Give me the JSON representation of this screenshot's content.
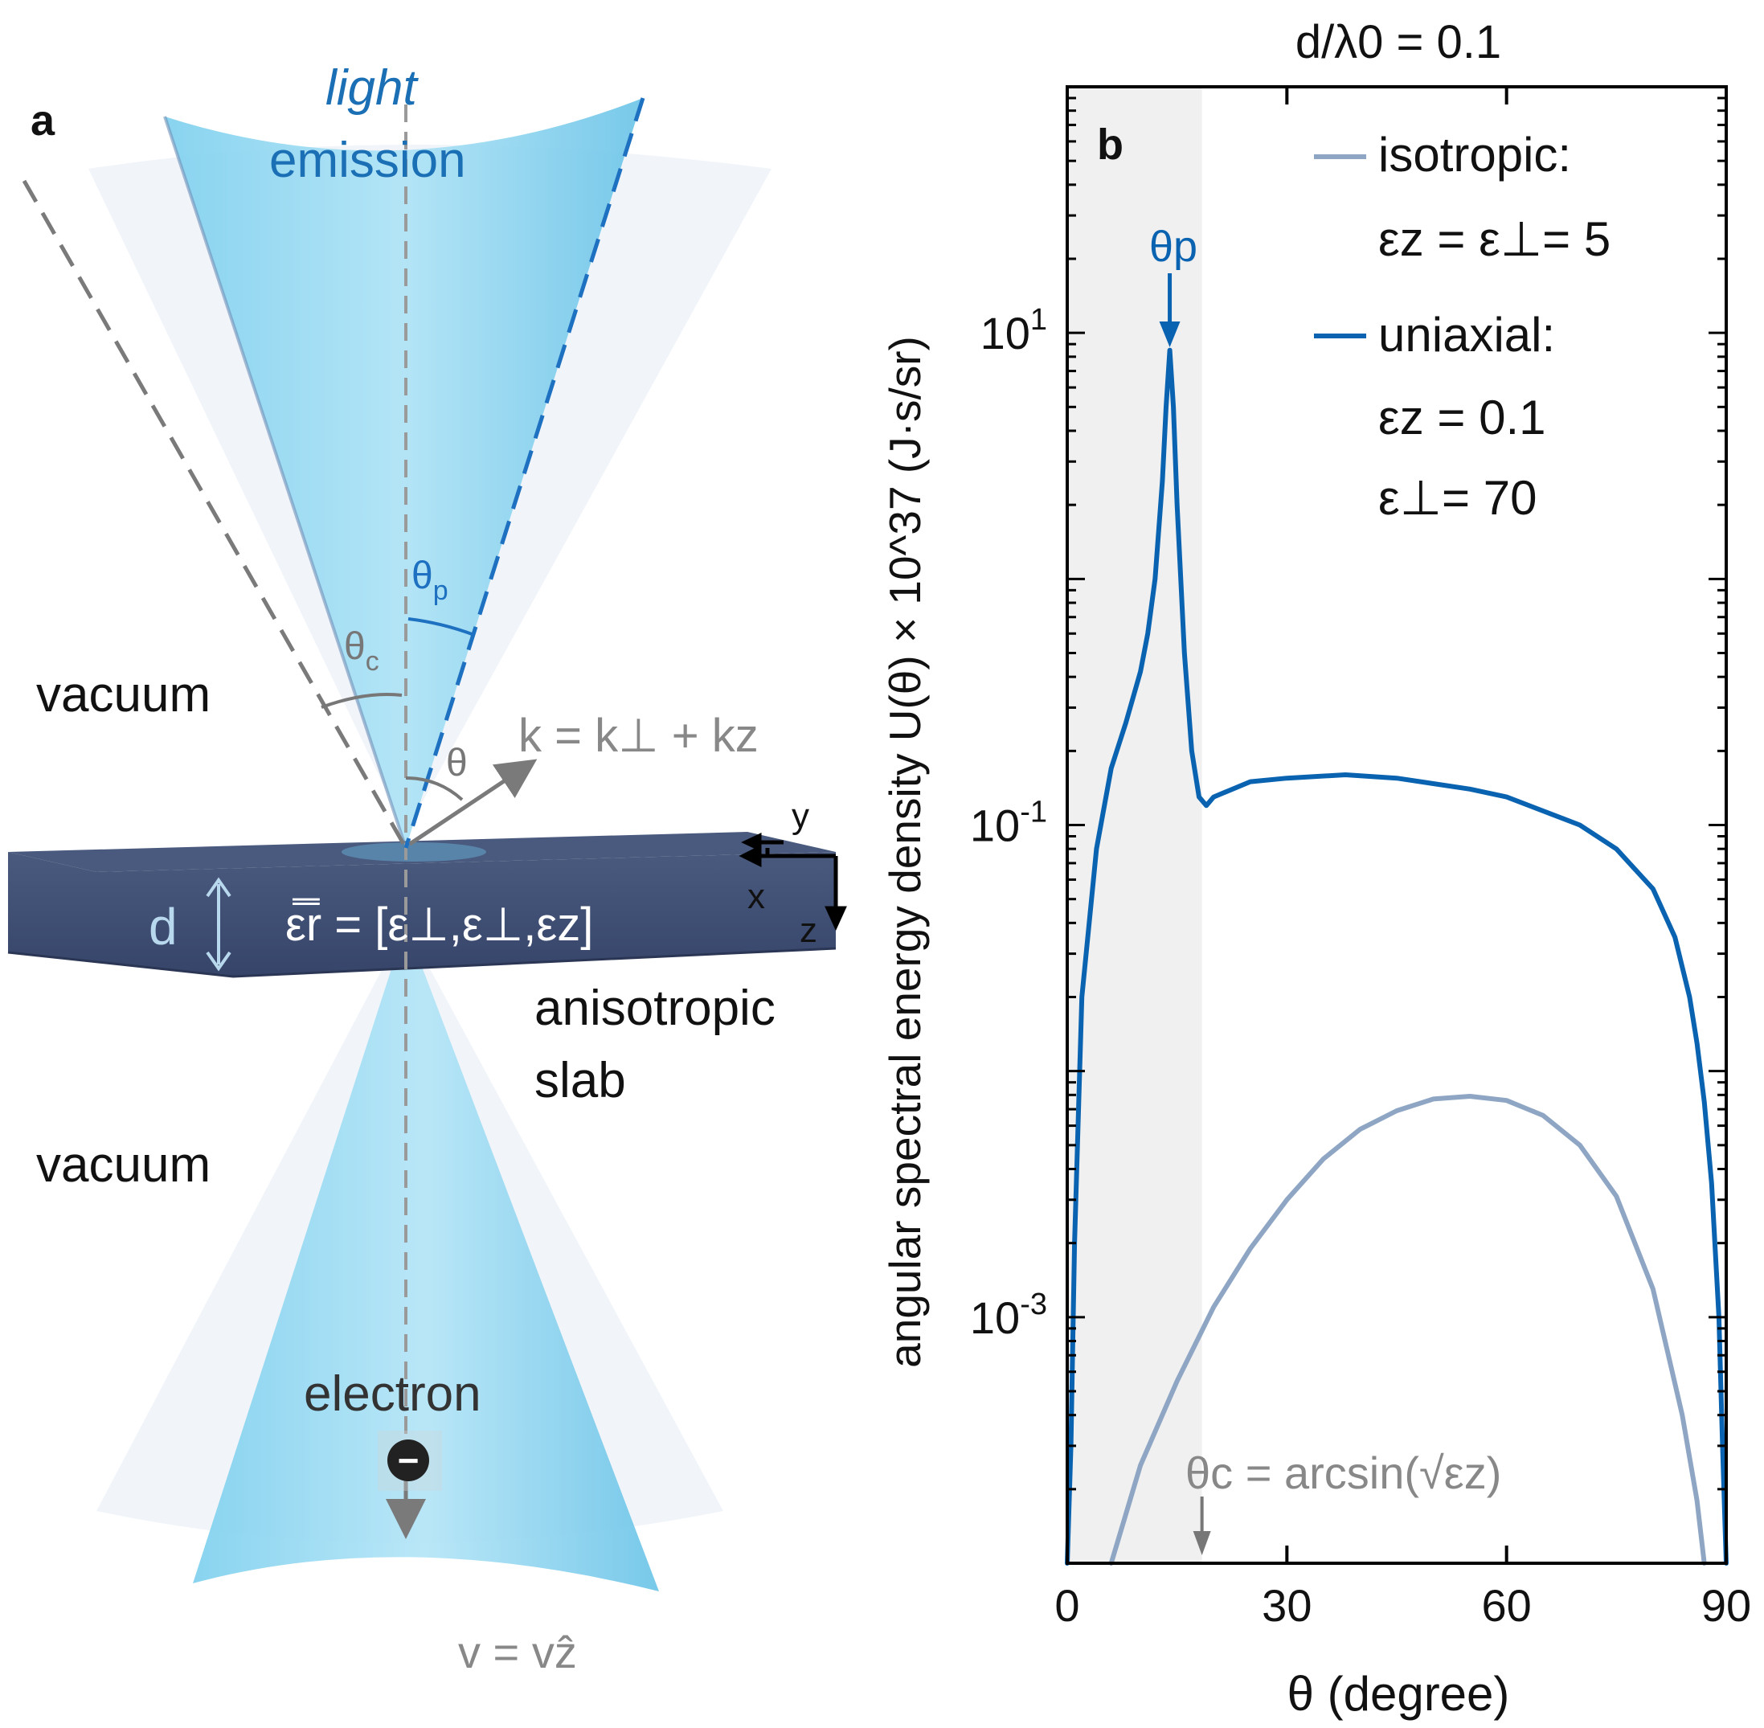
{
  "panel_a": {
    "label": "a",
    "light_emission_1": "light",
    "light_emission_2": "emission",
    "theta_p": "θ",
    "theta_p_sub": "p",
    "theta_c": "θ",
    "theta_c_sub": "c",
    "theta": "θ",
    "vacuum_top": "vacuum",
    "vacuum_bottom": "vacuum",
    "k_vector": "k = k⊥ + kz",
    "axis_y": "y",
    "axis_x": "x",
    "axis_z": "z",
    "thickness": "d",
    "epsilon_tensor": "ε̿r = [ε⊥,ε⊥,εz]",
    "slab_1": "anisotropic",
    "slab_2": "slab",
    "electron": "electron",
    "electron_symbol": "−",
    "velocity": "v = vẑ",
    "colors": {
      "cone": "#5cc3e8",
      "slab": "#3b4a6b",
      "text_blue": "#1a6fb5",
      "text_gray": "#777777"
    }
  },
  "panel_b": {
    "label": "b",
    "top_title": "d/λ0 = 0.1",
    "theta_p_marker": "θp",
    "theta_c_annotation": "θc = arcsin(√εz)",
    "xtick_labels": [
      "0",
      "30",
      "60",
      "90"
    ],
    "ytick_labels": [
      "10^1",
      "10^-1",
      "10^-3"
    ]
  },
  "chart_data": {
    "type": "line",
    "title": "d/λ0 = 0.1",
    "xlabel": "θ (degree)",
    "ylabel": "angular spectral energy density U(θ) × 10^37 (J·s/sr)",
    "xlim": [
      0,
      90
    ],
    "ylim": [
      0.0001,
      100
    ],
    "yscale": "log",
    "xticks": [
      0,
      30,
      60,
      90
    ],
    "yticks": [
      10,
      0.1,
      0.001
    ],
    "shaded_region_x": [
      0,
      18.4
    ],
    "legend_position": "top-right",
    "legend": [
      {
        "line1": "isotropic:",
        "line2": "εz = ε⊥= 5"
      },
      {
        "line1": "uniaxial:",
        "line2": "εz = 0.1",
        "line3": "ε⊥= 70"
      }
    ],
    "series": [
      {
        "name": "isotropic",
        "color": "#8ea6c4",
        "x": [
          6,
          10,
          15,
          20,
          25,
          30,
          35,
          40,
          45,
          50,
          55,
          60,
          65,
          70,
          75,
          80,
          84,
          86,
          87
        ],
        "y": [
          0.0001,
          0.00025,
          0.00055,
          0.0011,
          0.0019,
          0.003,
          0.0044,
          0.0058,
          0.0069,
          0.0077,
          0.0079,
          0.0076,
          0.0066,
          0.005,
          0.0031,
          0.0013,
          0.0004,
          0.00018,
          0.0001
        ]
      },
      {
        "name": "uniaxial",
        "color": "#0a63b0",
        "x": [
          0,
          0.5,
          1,
          2,
          4,
          6,
          8,
          10,
          11,
          12,
          13,
          13.5,
          14,
          14.5,
          15,
          16,
          17,
          18,
          19,
          20,
          25,
          30,
          38,
          45,
          55,
          60,
          70,
          75,
          80,
          83,
          85,
          86,
          87,
          88,
          89,
          89.5,
          90
        ],
        "y": [
          0.0001,
          0.0003,
          0.002,
          0.02,
          0.08,
          0.17,
          0.26,
          0.42,
          0.6,
          1.0,
          2.5,
          5.0,
          8.5,
          5.0,
          2.0,
          0.5,
          0.2,
          0.13,
          0.12,
          0.13,
          0.15,
          0.155,
          0.16,
          0.155,
          0.14,
          0.13,
          0.1,
          0.08,
          0.055,
          0.035,
          0.02,
          0.013,
          0.0075,
          0.0035,
          0.001,
          0.0003,
          0.0001
        ]
      }
    ]
  }
}
